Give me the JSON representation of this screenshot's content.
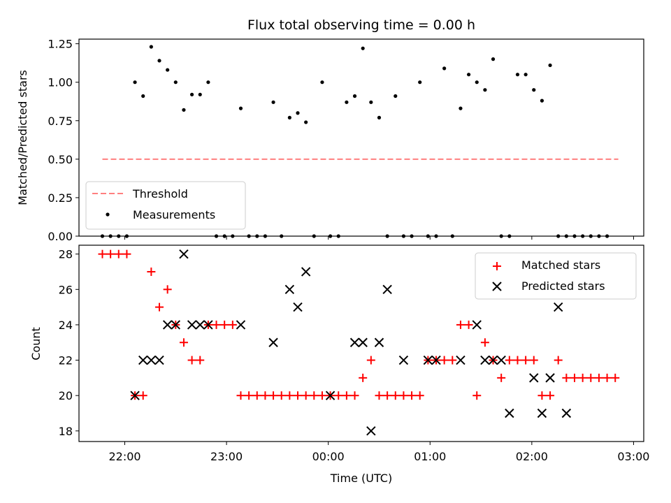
{
  "chart_data": [
    {
      "type": "scatter",
      "title": "Flux total observing time = 0.00 h",
      "xlabel": "",
      "ylabel": "Matched/Predicted stars",
      "ylim": [
        0,
        1.28
      ],
      "yticks": [
        "0.00",
        "0.25",
        "0.50",
        "0.75",
        "1.00",
        "1.25"
      ],
      "ytick_values": [
        0,
        0.25,
        0.5,
        0.75,
        1.0,
        1.25
      ],
      "xlim_hours": [
        21.55,
        27.1
      ],
      "legend_position": "lower-left",
      "threshold": {
        "name": "Threshold",
        "value": 0.5,
        "x_start": 21.78,
        "x_end": 26.85,
        "color": "#ff7f7f"
      },
      "measurements": {
        "name": "Measurements",
        "color": "#000000",
        "points": [
          [
            21.78,
            0
          ],
          [
            21.86,
            0
          ],
          [
            21.94,
            0
          ],
          [
            22.02,
            0
          ],
          [
            22.1,
            1.0
          ],
          [
            22.18,
            0.91
          ],
          [
            22.26,
            1.23
          ],
          [
            22.34,
            1.14
          ],
          [
            22.42,
            1.08
          ],
          [
            22.5,
            1.0
          ],
          [
            22.58,
            0.82
          ],
          [
            22.66,
            0.92
          ],
          [
            22.74,
            0.92
          ],
          [
            22.82,
            1.0
          ],
          [
            22.9,
            0
          ],
          [
            22.98,
            0
          ],
          [
            23.06,
            0
          ],
          [
            23.14,
            0.83
          ],
          [
            23.22,
            0
          ],
          [
            23.3,
            0
          ],
          [
            23.38,
            0
          ],
          [
            23.46,
            0.87
          ],
          [
            23.54,
            0
          ],
          [
            23.62,
            0.77
          ],
          [
            23.7,
            0.8
          ],
          [
            23.78,
            0.74
          ],
          [
            23.86,
            0
          ],
          [
            23.94,
            1.0
          ],
          [
            24.02,
            0
          ],
          [
            24.1,
            0
          ],
          [
            24.18,
            0.87
          ],
          [
            24.26,
            0.91
          ],
          [
            24.34,
            1.22
          ],
          [
            24.42,
            0.87
          ],
          [
            24.5,
            0.77
          ],
          [
            24.58,
            0
          ],
          [
            24.66,
            0.91
          ],
          [
            24.74,
            0
          ],
          [
            24.82,
            0
          ],
          [
            24.9,
            1.0
          ],
          [
            24.98,
            0
          ],
          [
            25.06,
            0
          ],
          [
            25.14,
            1.09
          ],
          [
            25.22,
            0
          ],
          [
            25.3,
            0.83
          ],
          [
            25.38,
            1.05
          ],
          [
            25.46,
            1.0
          ],
          [
            25.54,
            0.95
          ],
          [
            25.62,
            1.15
          ],
          [
            25.7,
            0
          ],
          [
            25.78,
            0
          ],
          [
            25.86,
            1.05
          ],
          [
            25.94,
            1.05
          ],
          [
            26.02,
            0.95
          ],
          [
            26.1,
            0.88
          ],
          [
            26.18,
            1.11
          ],
          [
            26.26,
            0
          ],
          [
            26.34,
            0
          ],
          [
            26.42,
            0
          ],
          [
            26.5,
            0
          ],
          [
            26.58,
            0
          ],
          [
            26.66,
            0
          ],
          [
            26.74,
            0
          ]
        ]
      }
    },
    {
      "type": "scatter",
      "title": "",
      "xlabel": "Time (UTC)",
      "ylabel": "Count",
      "ylim": [
        17.4,
        28.5
      ],
      "yticks": [
        "18",
        "20",
        "22",
        "24",
        "26",
        "28"
      ],
      "ytick_values": [
        18,
        20,
        22,
        24,
        26,
        28
      ],
      "xlim_hours": [
        21.55,
        27.1
      ],
      "xticks": [
        "22:00",
        "23:00",
        "00:00",
        "01:00",
        "02:00",
        "03:00"
      ],
      "xtick_values_hours": [
        22,
        23,
        24,
        25,
        26,
        27
      ],
      "legend_position": "upper-right",
      "series": [
        {
          "name": "Matched stars",
          "marker": "+",
          "color": "#ff0000",
          "points": [
            [
              21.78,
              28
            ],
            [
              21.86,
              28
            ],
            [
              21.94,
              28
            ],
            [
              22.02,
              28
            ],
            [
              22.1,
              20
            ],
            [
              22.18,
              20
            ],
            [
              22.26,
              27
            ],
            [
              22.34,
              25
            ],
            [
              22.42,
              26
            ],
            [
              22.5,
              24
            ],
            [
              22.58,
              23
            ],
            [
              22.66,
              22
            ],
            [
              22.74,
              22
            ],
            [
              22.82,
              24
            ],
            [
              22.9,
              24
            ],
            [
              22.98,
              24
            ],
            [
              23.06,
              24
            ],
            [
              23.14,
              20
            ],
            [
              23.22,
              20
            ],
            [
              23.3,
              20
            ],
            [
              23.38,
              20
            ],
            [
              23.46,
              20
            ],
            [
              23.54,
              20
            ],
            [
              23.62,
              20
            ],
            [
              23.7,
              20
            ],
            [
              23.78,
              20
            ],
            [
              23.86,
              20
            ],
            [
              23.94,
              20
            ],
            [
              24.02,
              20
            ],
            [
              24.1,
              20
            ],
            [
              24.18,
              20
            ],
            [
              24.26,
              20
            ],
            [
              24.34,
              21
            ],
            [
              24.42,
              22
            ],
            [
              24.5,
              20
            ],
            [
              24.58,
              20
            ],
            [
              24.66,
              20
            ],
            [
              24.74,
              20
            ],
            [
              24.82,
              20
            ],
            [
              24.9,
              20
            ],
            [
              24.98,
              22
            ],
            [
              25.06,
              22
            ],
            [
              25.14,
              22
            ],
            [
              25.22,
              22
            ],
            [
              25.3,
              24
            ],
            [
              25.38,
              24
            ],
            [
              25.46,
              20
            ],
            [
              25.54,
              23
            ],
            [
              25.62,
              22
            ],
            [
              25.7,
              21
            ],
            [
              25.78,
              22
            ],
            [
              25.86,
              22
            ],
            [
              25.94,
              22
            ],
            [
              26.02,
              22
            ],
            [
              26.1,
              20
            ],
            [
              26.18,
              20
            ],
            [
              26.26,
              22
            ],
            [
              26.34,
              21
            ],
            [
              26.42,
              21
            ],
            [
              26.5,
              21
            ],
            [
              26.58,
              21
            ],
            [
              26.66,
              21
            ],
            [
              26.74,
              21
            ],
            [
              26.82,
              21
            ]
          ]
        },
        {
          "name": "Predicted stars",
          "marker": "x",
          "color": "#000000",
          "points": [
            [
              22.1,
              20
            ],
            [
              22.18,
              22
            ],
            [
              22.26,
              22
            ],
            [
              22.34,
              22
            ],
            [
              22.42,
              24
            ],
            [
              22.5,
              24
            ],
            [
              22.58,
              28
            ],
            [
              22.66,
              24
            ],
            [
              22.74,
              24
            ],
            [
              22.82,
              24
            ],
            [
              23.14,
              24
            ],
            [
              23.46,
              23
            ],
            [
              23.62,
              26
            ],
            [
              23.7,
              25
            ],
            [
              23.78,
              27
            ],
            [
              24.02,
              20
            ],
            [
              24.26,
              23
            ],
            [
              24.34,
              23
            ],
            [
              24.42,
              18
            ],
            [
              24.5,
              23
            ],
            [
              24.58,
              26
            ],
            [
              24.74,
              22
            ],
            [
              24.98,
              22
            ],
            [
              25.06,
              22
            ],
            [
              25.3,
              22
            ],
            [
              25.46,
              24
            ],
            [
              25.54,
              22
            ],
            [
              25.62,
              22
            ],
            [
              25.7,
              22
            ],
            [
              25.78,
              19
            ],
            [
              26.02,
              21
            ],
            [
              26.1,
              19
            ],
            [
              26.18,
              21
            ],
            [
              26.26,
              25
            ],
            [
              26.34,
              19
            ]
          ]
        }
      ]
    }
  ]
}
